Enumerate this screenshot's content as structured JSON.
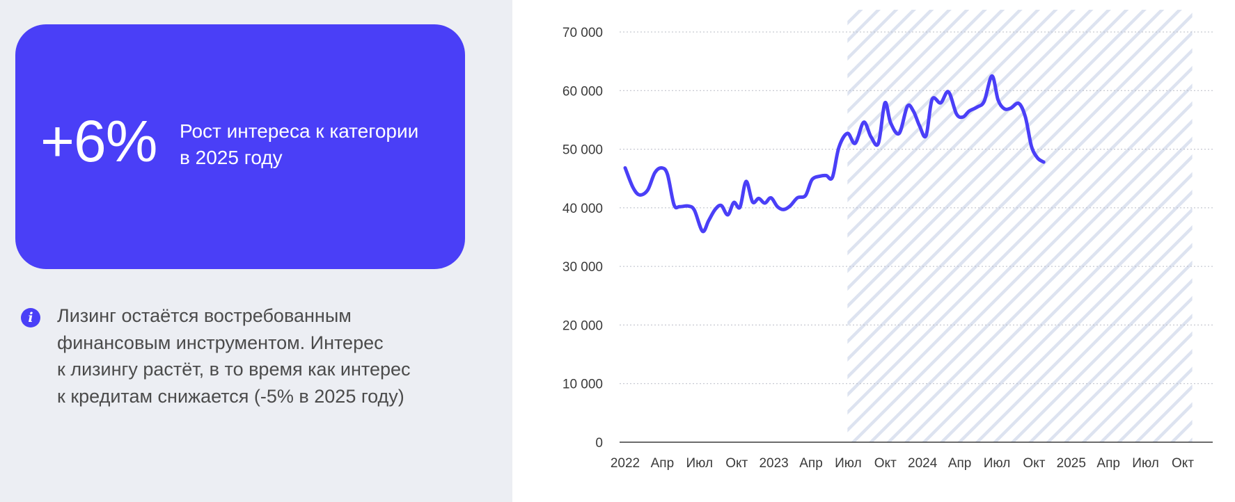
{
  "stat": {
    "value": "+6%",
    "caption_line1": "Рост интереса к категории",
    "caption_line2": "в 2025 году"
  },
  "note": {
    "icon": "info-icon",
    "icon_glyph": "i",
    "lines": [
      "Лизинг остаётся востребованным",
      "финансовым инструментом. Интерес",
      "к лизингу растёт, в то время как интерес",
      "к кредитам снижается (-5% в 2025 году)"
    ]
  },
  "colors": {
    "accent": "#4a3ff7",
    "panel_bg": "#eceef3",
    "highlight_hatch": "#dde3f0"
  },
  "chart_data": {
    "type": "line",
    "title": "",
    "xlabel": "",
    "ylabel": "",
    "ylim": [
      0,
      70000
    ],
    "yticks": [
      0,
      10000,
      20000,
      30000,
      40000,
      50000,
      60000,
      70000
    ],
    "ytick_labels": [
      "0",
      "10 000",
      "20 000",
      "30 000",
      "40 000",
      "50 000",
      "60 000",
      "70 000"
    ],
    "grid": "horizontal dotted",
    "x_tick_labels": [
      "2022",
      "Апр",
      "Июл",
      "Окт",
      "2023",
      "Апр",
      "Июл",
      "Окт",
      "2024",
      "Апр",
      "Июл",
      "Окт",
      "2025",
      "Апр",
      "Июл",
      "Окт"
    ],
    "highlight_region": {
      "from": "2023-07",
      "to": "2025-10",
      "style": "hatched"
    },
    "series": [
      {
        "values": [
          [
            "2022-01-01",
            46800
          ],
          [
            "2022-01-20",
            43500
          ],
          [
            "2022-02-05",
            42200
          ],
          [
            "2022-02-25",
            43000
          ],
          [
            "2022-03-15",
            46000
          ],
          [
            "2022-04-01",
            46800
          ],
          [
            "2022-04-15",
            45700
          ],
          [
            "2022-05-01",
            40500
          ],
          [
            "2022-05-15",
            40200
          ],
          [
            "2022-06-05",
            40300
          ],
          [
            "2022-06-20",
            39600
          ],
          [
            "2022-07-10",
            36000
          ],
          [
            "2022-07-25",
            37800
          ],
          [
            "2022-08-10",
            39700
          ],
          [
            "2022-08-25",
            40400
          ],
          [
            "2022-09-10",
            38800
          ],
          [
            "2022-09-25",
            40900
          ],
          [
            "2022-10-10",
            40100
          ],
          [
            "2022-10-25",
            44500
          ],
          [
            "2022-11-10",
            41000
          ],
          [
            "2022-11-25",
            41600
          ],
          [
            "2022-12-10",
            40800
          ],
          [
            "2022-12-25",
            41700
          ],
          [
            "2023-01-10",
            40200
          ],
          [
            "2023-01-25",
            39700
          ],
          [
            "2023-02-10",
            40300
          ],
          [
            "2023-02-28",
            41700
          ],
          [
            "2023-03-20",
            42100
          ],
          [
            "2023-04-05",
            44800
          ],
          [
            "2023-04-25",
            45400
          ],
          [
            "2023-05-10",
            45500
          ],
          [
            "2023-05-25",
            45200
          ],
          [
            "2023-06-10",
            50300
          ],
          [
            "2023-07-01",
            52700
          ],
          [
            "2023-07-20",
            51000
          ],
          [
            "2023-08-10",
            54600
          ],
          [
            "2023-08-28",
            52100
          ],
          [
            "2023-09-15",
            51000
          ],
          [
            "2023-10-01",
            57900
          ],
          [
            "2023-10-15",
            54500
          ],
          [
            "2023-11-05",
            52700
          ],
          [
            "2023-11-25",
            57300
          ],
          [
            "2023-12-10",
            56500
          ],
          [
            "2023-12-25",
            54000
          ],
          [
            "2024-01-10",
            52300
          ],
          [
            "2024-01-25",
            58500
          ],
          [
            "2024-02-15",
            57900
          ],
          [
            "2024-03-05",
            59800
          ],
          [
            "2024-03-25",
            56000
          ],
          [
            "2024-04-10",
            55500
          ],
          [
            "2024-04-25",
            56500
          ],
          [
            "2024-05-15",
            57200
          ],
          [
            "2024-06-01",
            58200
          ],
          [
            "2024-06-20",
            62500
          ],
          [
            "2024-07-05",
            58400
          ],
          [
            "2024-07-20",
            56900
          ],
          [
            "2024-08-05",
            57000
          ],
          [
            "2024-08-25",
            57800
          ],
          [
            "2024-09-10",
            55500
          ],
          [
            "2024-09-25",
            50500
          ],
          [
            "2024-10-10",
            48500
          ],
          [
            "2024-10-25",
            47800
          ]
        ]
      }
    ]
  }
}
